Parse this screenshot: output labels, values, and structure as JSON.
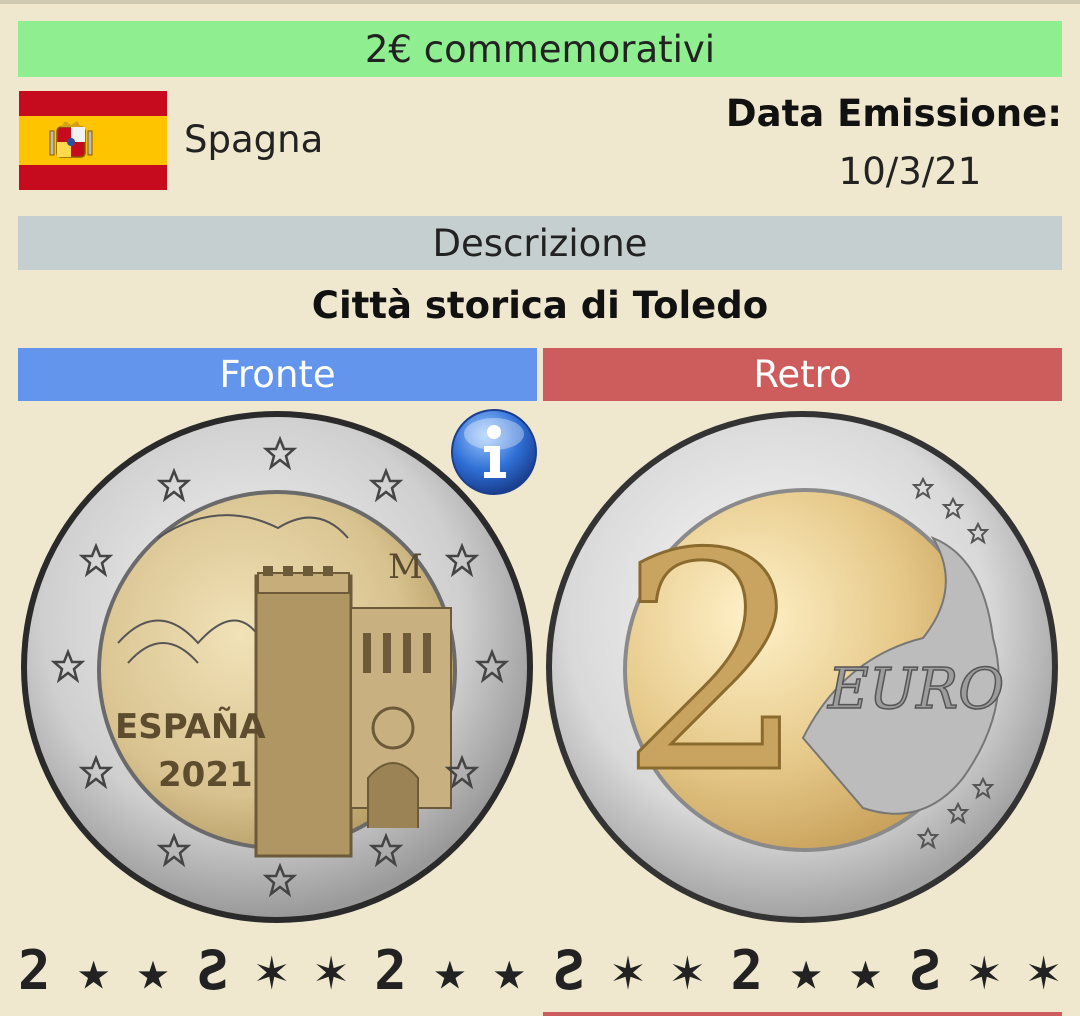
{
  "header": {
    "category": "2€ commemorativi"
  },
  "country": {
    "name": "Spagna"
  },
  "issue": {
    "label": "Data Emissione:",
    "date": "10/3/21"
  },
  "description": {
    "label": "Descrizione",
    "title": "Città storica di Toledo"
  },
  "sides": {
    "front_label": "Fronte",
    "back_label": "Retro"
  },
  "coin_front": {
    "country_text": "ESPAÑA",
    "year": "2021",
    "mint_mark": "M"
  },
  "coin_back": {
    "value": "2",
    "unit": "EURO"
  },
  "edge": {
    "symbols": [
      "2",
      "★",
      "★",
      "Ƨ",
      "✶",
      "✶",
      "2",
      "★",
      "★",
      "Ƨ",
      "✶",
      "✶",
      "2",
      "★",
      "★",
      "Ƨ",
      "✶",
      "✶"
    ]
  },
  "colors": {
    "green": "#8fee8f",
    "blue": "#6495ed",
    "red": "#cd5c5c",
    "grey": "#c6cfcf",
    "background": "#efe8cf"
  }
}
